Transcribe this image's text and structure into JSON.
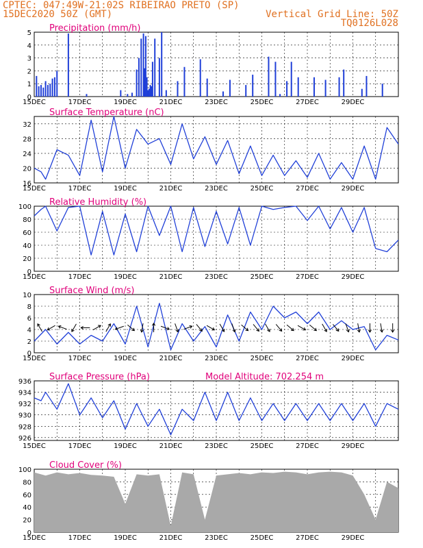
{
  "header": {
    "line1": "CPTEC:  047:49W-21:02S  RIBEIRAO PRETO (SP)",
    "line2_left": "15DEC2020 50Z (GMT)",
    "line2_right": "Vertical Grid Line: 50Z",
    "line3_right": "TQ0126L028"
  },
  "colors": {
    "header": "#e07020",
    "title": "#e0007a",
    "series": "#1f3fd8",
    "cloud": "#a9a9a9"
  },
  "x_dates": [
    "15DEC",
    "17DEC",
    "19DEC",
    "21DEC",
    "23DEC",
    "25DEC",
    "27DEC",
    "29DEC"
  ],
  "chart_data": [
    {
      "type": "bar",
      "title": "Precipitation (mm/h)",
      "ylim": [
        0,
        5
      ],
      "yticks": [
        "0",
        "1",
        "2",
        "3",
        "4",
        "5"
      ],
      "x": [
        0.1,
        0.2,
        0.3,
        0.4,
        0.5,
        0.6,
        0.7,
        0.8,
        0.9,
        1.0,
        1.5,
        2.3,
        3.8,
        4.1,
        4.3,
        4.5,
        4.6,
        4.7,
        4.8,
        4.85,
        4.9,
        4.95,
        5.0,
        5.05,
        5.1,
        5.15,
        5.2,
        5.3,
        5.5,
        5.6,
        5.8,
        6.3,
        6.6,
        7.3,
        7.6,
        8.3,
        8.6,
        9.3,
        9.6,
        10.3,
        10.6,
        10.8,
        11.1,
        11.3,
        11.6,
        12.3,
        12.8,
        13.4,
        13.6,
        14.4,
        14.6,
        15.3
      ],
      "values": [
        1.6,
        0.8,
        0.9,
        0.7,
        1.2,
        0.9,
        1.0,
        1.4,
        1.5,
        2.0,
        4.9,
        0.2,
        0.5,
        0.2,
        0.3,
        2.1,
        3.0,
        4.5,
        4.9,
        2.2,
        4.7,
        1.5,
        0.5,
        0.6,
        0.9,
        0.8,
        2.7,
        4.5,
        3.0,
        5.0,
        0.5,
        1.2,
        2.3,
        2.9,
        1.4,
        0.4,
        1.3,
        0.9,
        1.7,
        3.1,
        2.7,
        0.2,
        1.2,
        2.7,
        1.5,
        1.5,
        1.3,
        1.5,
        2.1,
        0.6,
        1.6,
        1.0
      ]
    },
    {
      "type": "line",
      "title": "Surface Temperature (nC)",
      "ylim": [
        16,
        34
      ],
      "yticks": [
        "16",
        "20",
        "24",
        "28",
        "32"
      ],
      "series": [
        {
          "x": [
            0,
            0.3,
            0.5,
            1.0,
            1.5,
            2.0,
            2.5,
            3.0,
            3.5,
            4.0,
            4.5,
            5.0,
            5.5,
            6.0,
            6.5,
            7.0,
            7.5,
            8.0,
            8.5,
            9.0,
            9.5,
            10.0,
            10.5,
            11.0,
            11.5,
            12.0,
            12.5,
            13.0,
            13.5,
            14.0,
            14.5,
            15.0,
            15.5,
            16.0
          ],
          "values": [
            20,
            19,
            17,
            25,
            23.5,
            18,
            33,
            19,
            34,
            20,
            30.5,
            26.5,
            28,
            21,
            32,
            22.5,
            28.5,
            21,
            27.5,
            18.5,
            26,
            18,
            23.5,
            18,
            22,
            17.5,
            24,
            17,
            21.5,
            17,
            26,
            17,
            31,
            26.5
          ]
        }
      ]
    },
    {
      "type": "line",
      "title": "Relative Humidity (%)",
      "ylim": [
        0,
        100
      ],
      "yticks": [
        "0",
        "20",
        "40",
        "60",
        "80",
        "100"
      ],
      "series": [
        {
          "x": [
            0,
            0.3,
            0.5,
            1.0,
            1.5,
            2.0,
            2.5,
            3.0,
            3.5,
            4.0,
            4.5,
            5.0,
            5.5,
            6.0,
            6.5,
            7.0,
            7.5,
            8.0,
            8.5,
            9.0,
            9.5,
            10.0,
            10.5,
            11.0,
            11.5,
            12.0,
            12.5,
            13.0,
            13.5,
            14.0,
            14.5,
            15.0,
            15.5,
            16.0
          ],
          "values": [
            85,
            95,
            100,
            62,
            98,
            100,
            25,
            92,
            25,
            88,
            30,
            100,
            55,
            100,
            30,
            98,
            38,
            92,
            42,
            98,
            40,
            100,
            95,
            98,
            100,
            78,
            100,
            65,
            98,
            60,
            98,
            35,
            30,
            48
          ]
        }
      ]
    },
    {
      "type": "line",
      "title": "Surface Wind (m/s)",
      "ylim": [
        0,
        10
      ],
      "yticks": [
        "0",
        "2",
        "4",
        "6",
        "8",
        "10"
      ],
      "series": [
        {
          "x": [
            0,
            0.5,
            1.0,
            1.5,
            2.0,
            2.5,
            3.0,
            3.5,
            4.0,
            4.5,
            5.0,
            5.5,
            6.0,
            6.5,
            7.0,
            7.5,
            8.0,
            8.5,
            9.0,
            9.5,
            10.0,
            10.5,
            11.0,
            11.5,
            12.0,
            12.5,
            13.0,
            13.5,
            14.0,
            14.5,
            15.0,
            15.5,
            16.0
          ],
          "values": [
            2,
            4,
            1.5,
            3.5,
            1.5,
            3,
            2,
            5,
            1.5,
            8,
            1,
            8.5,
            0.5,
            5,
            2,
            4.5,
            1,
            6.5,
            2,
            7,
            4,
            8,
            6,
            7,
            5,
            7,
            4,
            5.5,
            4,
            4.5,
            0.5,
            3,
            2.2
          ]
        }
      ],
      "barbs_dir_deg": [
        120,
        210,
        160,
        240,
        180,
        30,
        60,
        200,
        320,
        260,
        90,
        340,
        290,
        20,
        310,
        330,
        300,
        290,
        320,
        310,
        300,
        310,
        320,
        330,
        320,
        300,
        310,
        290,
        280,
        270,
        280,
        270
      ]
    },
    {
      "type": "line",
      "title": "Surface Pressure (hPa)",
      "annotation": "Model Altitude: 702.254 m",
      "ylim": [
        925.5,
        936
      ],
      "yticks": [
        "926",
        "928",
        "930",
        "932",
        "934",
        "936"
      ],
      "series": [
        {
          "x": [
            0,
            0.3,
            0.5,
            1.0,
            1.5,
            2.0,
            2.5,
            3.0,
            3.5,
            4.0,
            4.5,
            5.0,
            5.5,
            6.0,
            6.5,
            7.0,
            7.5,
            8.0,
            8.5,
            9.0,
            9.5,
            10.0,
            10.5,
            11.0,
            11.5,
            12.0,
            12.5,
            13.0,
            13.5,
            14.0,
            14.5,
            15.0,
            15.5,
            16.0
          ],
          "values": [
            933,
            932.5,
            934,
            931,
            935.5,
            930,
            933,
            929.5,
            932.5,
            927.5,
            932,
            928,
            931,
            926.5,
            931,
            929,
            934,
            929,
            934,
            929,
            933,
            929,
            932,
            929,
            932,
            929,
            932,
            929,
            932,
            929,
            932,
            928,
            932,
            931
          ]
        }
      ]
    },
    {
      "type": "area",
      "title": "Cloud Cover (%)",
      "ylim": [
        0,
        100
      ],
      "yticks": [
        "0",
        "20",
        "40",
        "60",
        "80",
        "100"
      ],
      "x": [
        0,
        0.5,
        1.0,
        1.5,
        2.0,
        2.5,
        3.0,
        3.5,
        4.0,
        4.5,
        5.0,
        5.5,
        6.0,
        6.5,
        7.0,
        7.5,
        8.0,
        8.5,
        9.0,
        9.5,
        10.0,
        10.5,
        11.0,
        11.5,
        12.0,
        12.5,
        13.0,
        13.5,
        14.0,
        14.5,
        15.0,
        15.5,
        16.0
      ],
      "values": [
        95,
        90,
        95,
        92,
        94,
        91,
        90,
        88,
        45,
        92,
        90,
        92,
        10,
        95,
        92,
        20,
        90,
        92,
        94,
        92,
        95,
        94,
        96,
        95,
        92,
        95,
        96,
        95,
        90,
        60,
        20,
        80,
        70
      ]
    }
  ]
}
